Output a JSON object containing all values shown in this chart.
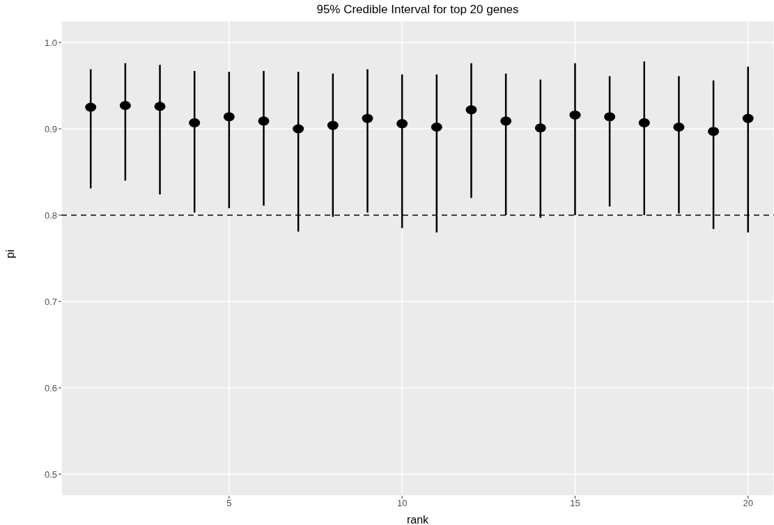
{
  "chart_data": {
    "type": "scatter",
    "title": "95% Credible Interval for top 20 genes",
    "xlabel": "rank",
    "ylabel": "pi",
    "x": [
      1,
      2,
      3,
      4,
      5,
      6,
      7,
      8,
      9,
      10,
      11,
      12,
      13,
      14,
      15,
      16,
      17,
      18,
      19,
      20
    ],
    "values": [
      0.925,
      0.927,
      0.926,
      0.907,
      0.914,
      0.909,
      0.9,
      0.904,
      0.912,
      0.906,
      0.902,
      0.922,
      0.909,
      0.901,
      0.916,
      0.914,
      0.907,
      0.902,
      0.897,
      0.912
    ],
    "errors": [
      [
        0.831,
        0.969
      ],
      [
        0.84,
        0.976
      ],
      [
        0.824,
        0.974
      ],
      [
        0.803,
        0.967
      ],
      [
        0.808,
        0.966
      ],
      [
        0.811,
        0.967
      ],
      [
        0.781,
        0.966
      ],
      [
        0.798,
        0.964
      ],
      [
        0.803,
        0.969
      ],
      [
        0.785,
        0.963
      ],
      [
        0.78,
        0.963
      ],
      [
        0.82,
        0.976
      ],
      [
        0.8,
        0.964
      ],
      [
        0.797,
        0.957
      ],
      [
        0.8,
        0.976
      ],
      [
        0.81,
        0.961
      ],
      [
        0.8,
        0.978
      ],
      [
        0.802,
        0.961
      ],
      [
        0.784,
        0.956
      ],
      [
        0.78,
        0.972
      ]
    ],
    "color": "#000000",
    "marker": "circle",
    "xlim": [
      0.15,
      20.75
    ],
    "xticks": [
      5,
      10,
      15,
      20
    ],
    "ylim": [
      0.475,
      1.025
    ],
    "yticks": [
      0.5,
      0.6,
      0.7,
      0.8,
      0.9,
      {
        "value": 1,
        "label": "1.0"
      }
    ],
    "grid": true,
    "ref_lines": [
      {
        "axis": "y",
        "value": 0.8,
        "line_style": "dashed",
        "color": "#000000"
      }
    ]
  }
}
